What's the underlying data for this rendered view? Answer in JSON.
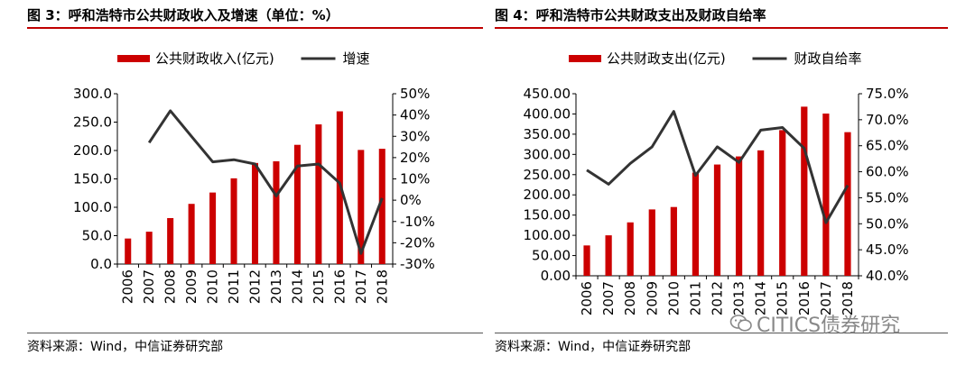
{
  "colors": {
    "bar": "#cc0000",
    "line": "#333333",
    "rule": "#c00000"
  },
  "watermark": {
    "icon": "wechat-icon",
    "text": "CITICS债券研究"
  },
  "chart_data": [
    {
      "fig_title": "图 3：呼和浩特市公共财政收入及增速（单位：%）",
      "source": "资料来源：Wind，中信证券研究部",
      "type": "bar",
      "legend_position": "top",
      "categories": [
        "2006",
        "2007",
        "2008",
        "2009",
        "2010",
        "2011",
        "2012",
        "2013",
        "2014",
        "2015",
        "2016",
        "2017",
        "2018"
      ],
      "series": [
        {
          "name": "公共财政收入(亿元)",
          "type": "bar",
          "axis": "left",
          "values": [
            45,
            57,
            81,
            106,
            126,
            151,
            178,
            181,
            210,
            246,
            269,
            201,
            203
          ]
        },
        {
          "name": "增速",
          "type": "line",
          "axis": "right",
          "values": [
            null,
            27,
            42,
            30,
            18,
            19,
            17,
            2,
            16,
            17,
            8,
            -25,
            1
          ]
        }
      ],
      "y_left": {
        "min": 0,
        "max": 300,
        "step": 50,
        "decimals": 1,
        "suffix": ""
      },
      "y_right": {
        "min": -30,
        "max": 50,
        "step": 10,
        "decimals": 0,
        "suffix": "%"
      }
    },
    {
      "fig_title": "图 4：呼和浩特市公共财政支出及财政自给率",
      "source": "资料来源：Wind，中信证券研究部",
      "type": "bar",
      "legend_position": "top",
      "categories": [
        "2006",
        "2007",
        "2008",
        "2009",
        "2010",
        "2011",
        "2012",
        "2013",
        "2014",
        "2015",
        "2016",
        "2017",
        "2018"
      ],
      "series": [
        {
          "name": "公共财政支出(亿元)",
          "type": "bar",
          "axis": "left",
          "values": [
            75,
            100,
            132,
            164,
            170,
            255,
            275,
            295,
            310,
            360,
            418,
            401,
            355
          ]
        },
        {
          "name": "财政自给率",
          "type": "line",
          "axis": "right",
          "values": [
            60.3,
            57.6,
            61.6,
            64.8,
            71.6,
            59.3,
            64.8,
            61.8,
            68.0,
            68.5,
            64.5,
            50.2,
            57.4
          ]
        }
      ],
      "y_left": {
        "min": 0,
        "max": 450,
        "step": 50,
        "decimals": 2,
        "suffix": ""
      },
      "y_right": {
        "min": 40,
        "max": 75,
        "step": 5,
        "decimals": 1,
        "suffix": "%"
      }
    }
  ]
}
